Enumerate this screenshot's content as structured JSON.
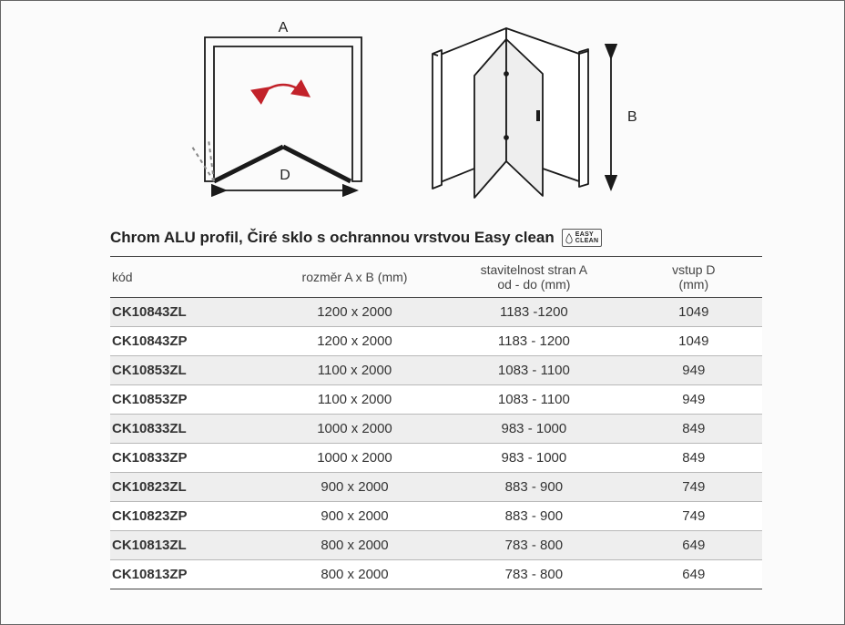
{
  "diagram": {
    "labels": {
      "a": "A",
      "b": "B",
      "d": "D"
    },
    "stroke": "#1a1a1a",
    "arrow_color": "#c2222a",
    "panel_fill": "#eeeeee"
  },
  "title": "Chrom ALU profil, Čiré sklo s ochrannou vrstvou Easy clean",
  "easy_clean_badge": "EASY\nCLEAN",
  "table": {
    "headers": {
      "code": "kód",
      "size": "rozměr A x B  (mm)",
      "adjust_l1": "stavitelnost stran A",
      "adjust_l2": "od - do (mm)",
      "entry_l1": "vstup D",
      "entry_l2": "(mm)"
    },
    "rows": [
      {
        "code": "CK10843ZL",
        "size": "1200 x 2000",
        "adjust": "1183 -1200",
        "entry": "1049"
      },
      {
        "code": "CK10843ZP",
        "size": "1200 x 2000",
        "adjust": "1183 - 1200",
        "entry": "1049"
      },
      {
        "code": "CK10853ZL",
        "size": "1100 x 2000",
        "adjust": "1083 - 1100",
        "entry": "949"
      },
      {
        "code": "CK10853ZP",
        "size": "1100 x 2000",
        "adjust": "1083 - 1100",
        "entry": "949"
      },
      {
        "code": "CK10833ZL",
        "size": "1000 x 2000",
        "adjust": "983 - 1000",
        "entry": "849"
      },
      {
        "code": "CK10833ZP",
        "size": "1000 x 2000",
        "adjust": "983 - 1000",
        "entry": "849"
      },
      {
        "code": "CK10823ZL",
        "size": "900 x 2000",
        "adjust": "883 - 900",
        "entry": "749"
      },
      {
        "code": "CK10823ZP",
        "size": "900 x 2000",
        "adjust": "883 - 900",
        "entry": "749"
      },
      {
        "code": "CK10813ZL",
        "size": "800 x 2000",
        "adjust": "783 - 800",
        "entry": "649"
      },
      {
        "code": "CK10813ZP",
        "size": "800 x 2000",
        "adjust": "783 - 800",
        "entry": "649"
      }
    ]
  }
}
